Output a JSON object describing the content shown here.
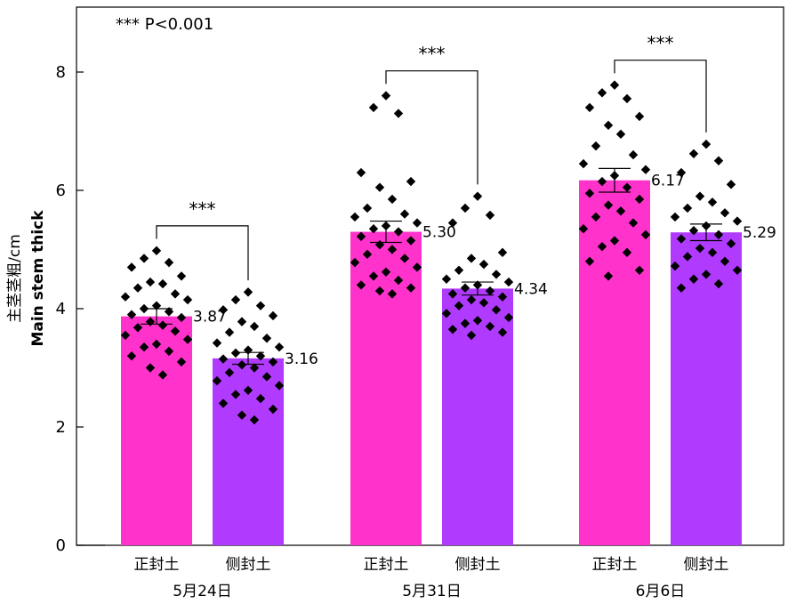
{
  "chart_data": {
    "type": "bar",
    "ylabel_cn": "主茎茎粗/cm",
    "ylabel_en": "Main stem thick",
    "legend_note": "***  P<0.001",
    "ylim": [
      0,
      9
    ],
    "yticks": [
      0,
      2,
      4,
      6,
      8
    ],
    "colors": {
      "正封土": "#ff33cc",
      "侧封土": "#b03bff"
    },
    "groups": [
      {
        "date": "5月24日",
        "significance": "***",
        "bars": [
          {
            "label": "正封土",
            "mean": 3.87,
            "value_label": "3.87",
            "err": 0.13,
            "points": [
              4.98,
              4.85,
              4.78,
              4.7,
              4.55,
              4.45,
              4.42,
              4.35,
              4.25,
              4.2,
              4.15,
              4.05,
              4.0,
              3.95,
              3.9,
              3.85,
              3.78,
              3.72,
              3.68,
              3.62,
              3.55,
              3.48,
              3.4,
              3.35,
              3.28,
              3.2,
              3.1,
              3.0,
              2.88
            ]
          },
          {
            "label": "侧封土",
            "mean": 3.16,
            "value_label": "3.16",
            "err": 0.1,
            "points": [
              4.28,
              4.15,
              4.05,
              3.98,
              3.88,
              3.78,
              3.7,
              3.6,
              3.5,
              3.42,
              3.35,
              3.3,
              3.25,
              3.2,
              3.15,
              3.1,
              3.05,
              3.0,
              2.92,
              2.85,
              2.78,
              2.7,
              2.62,
              2.55,
              2.48,
              2.4,
              2.3,
              2.2,
              2.12
            ]
          }
        ]
      },
      {
        "date": "5月31日",
        "significance": "***",
        "bars": [
          {
            "label": "正封土",
            "mean": 5.3,
            "value_label": "5.30",
            "err": 0.18,
            "points": [
              7.6,
              7.4,
              7.3,
              6.3,
              6.15,
              6.05,
              5.85,
              5.7,
              5.6,
              5.55,
              5.45,
              5.4,
              5.35,
              5.3,
              5.22,
              5.15,
              5.08,
              5.0,
              4.92,
              4.85,
              4.78,
              4.7,
              4.62,
              4.55,
              4.48,
              4.4,
              4.35,
              4.3,
              4.25
            ]
          },
          {
            "label": "侧封土",
            "mean": 4.34,
            "value_label": "4.34",
            "err": 0.11,
            "points": [
              5.9,
              5.7,
              5.58,
              5.45,
              4.95,
              4.85,
              4.75,
              4.65,
              4.58,
              4.5,
              4.45,
              4.4,
              4.35,
              4.3,
              4.25,
              4.2,
              4.15,
              4.1,
              4.05,
              3.98,
              3.92,
              3.85,
              3.8,
              3.75,
              3.7,
              3.65,
              3.6,
              3.55
            ]
          }
        ]
      },
      {
        "date": "6月6日",
        "significance": "***",
        "bars": [
          {
            "label": "正封土",
            "mean": 6.17,
            "value_label": "6.17",
            "err": 0.2,
            "points": [
              7.78,
              7.65,
              7.55,
              7.4,
              7.25,
              7.1,
              6.95,
              6.75,
              6.6,
              6.45,
              6.35,
              6.25,
              6.15,
              6.05,
              5.95,
              5.85,
              5.75,
              5.65,
              5.55,
              5.45,
              5.35,
              5.25,
              5.15,
              5.05,
              4.95,
              4.8,
              4.65,
              4.55
            ]
          },
          {
            "label": "侧封土",
            "mean": 5.29,
            "value_label": "5.29",
            "err": 0.14,
            "points": [
              6.78,
              6.62,
              6.5,
              6.3,
              6.1,
              5.9,
              5.8,
              5.7,
              5.62,
              5.55,
              5.48,
              5.4,
              5.32,
              5.25,
              5.18,
              5.1,
              5.02,
              4.95,
              4.88,
              4.8,
              4.72,
              4.65,
              4.58,
              4.5,
              4.42,
              4.35
            ]
          }
        ]
      }
    ]
  }
}
